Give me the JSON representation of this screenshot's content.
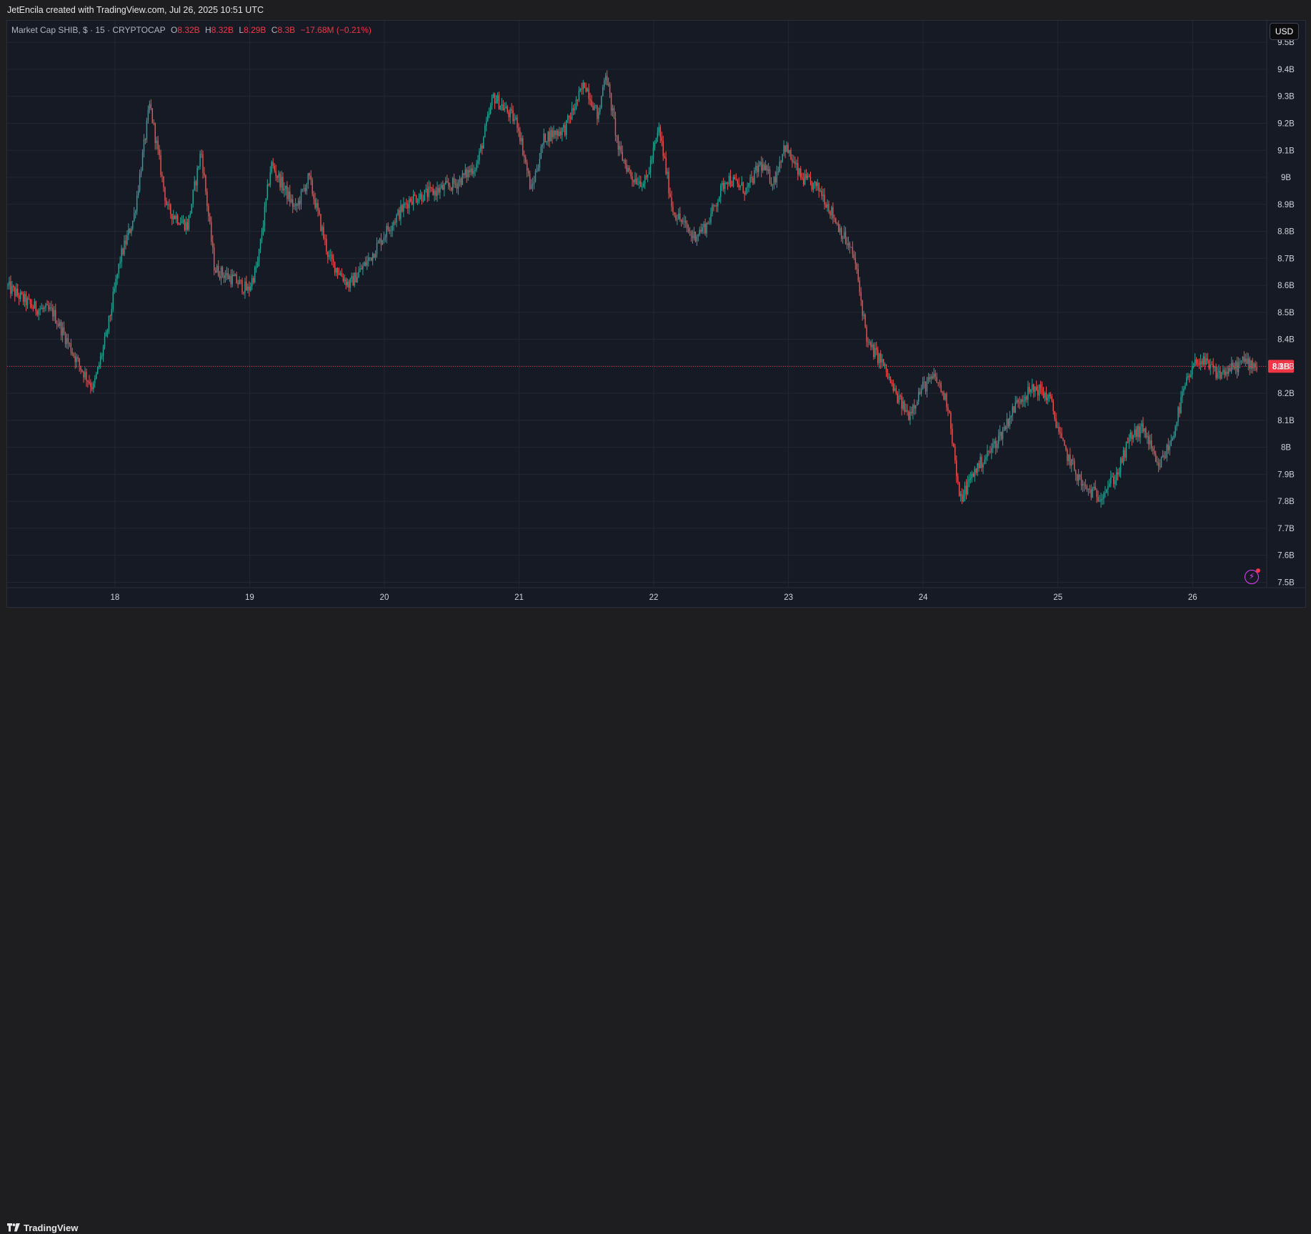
{
  "header": {
    "credit": "JetEncila created with TradingView.com, Jul 26, 2025 10:51 UTC"
  },
  "legend": {
    "symbol": "Market Cap SHIB, $ · 15 · CRYPTOCAP",
    "open_label": "O",
    "open": "8.32B",
    "high_label": "H",
    "high": "8.32B",
    "low_label": "L",
    "low": "8.29B",
    "close_label": "C",
    "close": "8.3B",
    "change": "−17.68M (−0.21%)"
  },
  "currency_button": "USD",
  "footer": {
    "brand": "TradingView"
  },
  "colors": {
    "up": "#26a69a",
    "down": "#ef5350",
    "background": "#161a25",
    "grid": "#232733",
    "price_line": "#f23645"
  },
  "chart_data": {
    "type": "candlestick",
    "interval": "15",
    "x_ticks": [
      "18",
      "19",
      "20",
      "21",
      "22",
      "23",
      "24",
      "25",
      "26"
    ],
    "y_ticks": [
      "7.5B",
      "7.6B",
      "7.7B",
      "7.8B",
      "7.9B",
      "8B",
      "8.1B",
      "8.2B",
      "8.3B",
      "8.4B",
      "8.5B",
      "8.6B",
      "8.7B",
      "8.8B",
      "8.9B",
      "9B",
      "9.1B",
      "9.2B",
      "9.3B",
      "9.4B",
      "9.5B"
    ],
    "ylim": [
      7.48,
      9.58
    ],
    "xlim": [
      17.2,
      26.55
    ],
    "last_price": 8.3,
    "last_price_label": "8.3B",
    "grid": true,
    "path": [
      [
        17.2,
        8.6
      ],
      [
        17.4,
        8.52
      ],
      [
        17.55,
        8.5
      ],
      [
        17.75,
        8.3
      ],
      [
        17.85,
        8.22
      ],
      [
        17.95,
        8.42
      ],
      [
        18.05,
        8.7
      ],
      [
        18.15,
        8.85
      ],
      [
        18.27,
        9.27
      ],
      [
        18.4,
        8.88
      ],
      [
        18.55,
        8.82
      ],
      [
        18.65,
        9.1
      ],
      [
        18.75,
        8.66
      ],
      [
        18.9,
        8.62
      ],
      [
        19.0,
        8.58
      ],
      [
        19.07,
        8.68
      ],
      [
        19.17,
        9.05
      ],
      [
        19.35,
        8.88
      ],
      [
        19.45,
        9.0
      ],
      [
        19.6,
        8.7
      ],
      [
        19.75,
        8.6
      ],
      [
        19.9,
        8.7
      ],
      [
        20.05,
        8.82
      ],
      [
        20.2,
        8.92
      ],
      [
        20.4,
        8.95
      ],
      [
        20.55,
        8.98
      ],
      [
        20.7,
        9.05
      ],
      [
        20.82,
        9.3
      ],
      [
        21.0,
        9.2
      ],
      [
        21.1,
        8.95
      ],
      [
        21.2,
        9.15
      ],
      [
        21.35,
        9.18
      ],
      [
        21.5,
        9.35
      ],
      [
        21.6,
        9.22
      ],
      [
        21.65,
        9.4
      ],
      [
        21.75,
        9.1
      ],
      [
        21.85,
        9.0
      ],
      [
        21.95,
        8.98
      ],
      [
        22.05,
        9.18
      ],
      [
        22.15,
        8.88
      ],
      [
        22.3,
        8.78
      ],
      [
        22.4,
        8.82
      ],
      [
        22.55,
        9.0
      ],
      [
        22.7,
        8.95
      ],
      [
        22.8,
        9.05
      ],
      [
        22.9,
        8.98
      ],
      [
        22.98,
        9.12
      ],
      [
        23.1,
        9.0
      ],
      [
        23.25,
        8.95
      ],
      [
        23.4,
        8.8
      ],
      [
        23.5,
        8.7
      ],
      [
        23.6,
        8.38
      ],
      [
        23.7,
        8.32
      ],
      [
        23.8,
        8.2
      ],
      [
        23.9,
        8.12
      ],
      [
        24.0,
        8.22
      ],
      [
        24.1,
        8.26
      ],
      [
        24.2,
        8.15
      ],
      [
        24.28,
        7.8
      ],
      [
        24.4,
        7.92
      ],
      [
        24.5,
        7.98
      ],
      [
        24.6,
        8.06
      ],
      [
        24.72,
        8.18
      ],
      [
        24.85,
        8.22
      ],
      [
        24.95,
        8.18
      ],
      [
        25.05,
        8.0
      ],
      [
        25.2,
        7.85
      ],
      [
        25.32,
        7.82
      ],
      [
        25.45,
        7.9
      ],
      [
        25.55,
        8.04
      ],
      [
        25.65,
        8.07
      ],
      [
        25.75,
        7.92
      ],
      [
        25.85,
        8.02
      ],
      [
        25.95,
        8.22
      ],
      [
        26.05,
        8.33
      ],
      [
        26.2,
        8.27
      ],
      [
        26.3,
        8.29
      ],
      [
        26.4,
        8.32
      ],
      [
        26.5,
        8.3
      ]
    ]
  }
}
